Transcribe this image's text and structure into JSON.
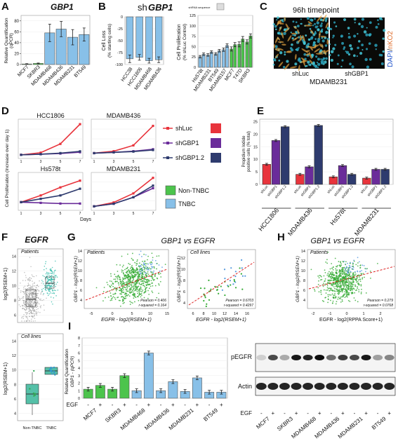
{
  "panels": {
    "A": "A",
    "B": "B",
    "C": "C",
    "D": "D",
    "E": "E",
    "F": "F",
    "G": "G",
    "H": "H",
    "I": "I"
  },
  "colors": {
    "tnbc": "#88c0e8",
    "non_tnbc": "#4cc44c",
    "shluc": "#e8343c",
    "shgbp1": "#6a2c9a",
    "shgbp12": "#2e3b6e",
    "egfr_fit": "#dd2222",
    "green_pts": "#33aa33",
    "blue_pts": "#5599dd"
  },
  "panel_a": {
    "title": "GBP1",
    "ylabel": "Relative Quantification",
    "ylabel2": "(qPCR)"
  },
  "panel_b": {
    "title_prefix": "sh",
    "title_gene": "GBP1",
    "inset_label": "shRNA sequence",
    "left_ylabel1": "Cell Loss",
    "left_ylabel2": "(% starting cells)",
    "right_ylabel1": "Cell Proliferation",
    "right_ylabel2": "(% shLuc Control)"
  },
  "panel_c": {
    "title": "96h timepoint",
    "label_left": "shLuc",
    "label_right": "shGBP1",
    "cell_line": "MDAMB231",
    "stain_dapi": "DAPI",
    "stain_sep": "/",
    "stain_nuc": "nKO2"
  },
  "panel_d": {
    "ylabel": "Cell Proliferation (Increase over day 1)",
    "xlabel": "Days",
    "legend": [
      "shLuc",
      "shGBP1",
      "shGBP1.2"
    ]
  },
  "legend_type": {
    "non_tnbc": "Non-TNBC",
    "tnbc": "TNBC"
  },
  "panel_e": {
    "ylabel1": "Propidium Iodide",
    "ylabel2": "positive cells (% total)"
  },
  "panel_f": {
    "title": "EGFR",
    "top_label": "Patients",
    "bottom_label": "Cell lines",
    "ylabel": "log2(RSEM+1)",
    "xlabels": [
      "Non-TNBC",
      "TNBC"
    ]
  },
  "panel_g": {
    "title": "GBP1 vs EGFR",
    "left_label": "Patients",
    "right_label": "Cell lines",
    "ylabel": "GBP1 - log2(RSEM+1)",
    "xlabel": "EGFR - log2(RSEM+1)",
    "left_stats": [
      "Pearson = 0.406",
      "r-squared = 0.164"
    ],
    "right_stats": [
      "Pearson = 0.6703",
      "r-squared = 0.4297"
    ]
  },
  "panel_h": {
    "title": "GBP1 vs EGFR",
    "label": "Patients",
    "ylabel": "GBP1 - log2(RSEM+1)",
    "xlabel": "EGFR - log2(RPPA Score+1)",
    "stats": [
      "Pearson = 0.279",
      "r-squared = 0.0768"
    ]
  },
  "panel_i": {
    "ylabel1": "Relative Quantification",
    "ylabel2": "GBP1 - (qPCR)",
    "egf_label": "EGF",
    "wb_labels": [
      "pEGFR",
      "Actin"
    ]
  },
  "chart_data": [
    {
      "id": "A",
      "type": "bar",
      "categories": [
        "MCF7",
        "SKBR3",
        "MDAMB468",
        "MDAMB436",
        "MDAMB231",
        "BT549"
      ],
      "values": [
        1,
        2,
        58,
        65,
        50,
        55
      ],
      "errors": [
        0.5,
        0.7,
        16,
        14,
        14,
        12
      ],
      "ylim": [
        0,
        90
      ],
      "yticks": [
        0,
        20,
        40,
        60,
        80
      ],
      "groups": [
        "non",
        "non",
        "tnbc",
        "tnbc",
        "tnbc",
        "tnbc"
      ]
    },
    {
      "id": "B-left",
      "type": "bar",
      "categories": [
        "HCC38",
        "HCC1806",
        "MDAMB468",
        "MDAMB436"
      ],
      "values": [
        -88,
        -85,
        -92,
        -90
      ],
      "errors": [
        8,
        6,
        5,
        6
      ],
      "ylim": [
        -100,
        0
      ],
      "yticks": [
        -100,
        -75,
        -50,
        -25,
        0
      ]
    },
    {
      "id": "B-right",
      "type": "bar",
      "categories": [
        "Hs578t",
        "MDAMB231",
        "BT549",
        "MDAMB157",
        "MCF7",
        "T47D",
        "SKBR3"
      ],
      "values": [
        30,
        35,
        38,
        50,
        52,
        65,
        72
      ],
      "errors": [
        3,
        3,
        3,
        4,
        5,
        6,
        5
      ],
      "ylim": [
        0,
        125
      ],
      "yticks": [
        0,
        25,
        50,
        75,
        100,
        125
      ],
      "groups": [
        "tnbc",
        "tnbc",
        "tnbc",
        "tnbc",
        "non",
        "non",
        "non"
      ],
      "per_group_bars": 4
    },
    {
      "id": "D",
      "type": "line",
      "x": [
        1,
        3,
        5,
        7
      ],
      "subplots": [
        {
          "name": "HCC1806",
          "series": [
            [
              1,
              2,
              6,
              15
            ],
            [
              1,
              1.3,
              1.6,
              2.2
            ],
            [
              1,
              1.3,
              1.8,
              2.6
            ]
          ],
          "ylim": [
            0,
            16
          ]
        },
        {
          "name": "MDAMB436",
          "series": [
            [
              1,
              1.5,
              3,
              8
            ],
            [
              1,
              1.2,
              1.5,
              2.0
            ],
            [
              1,
              1.2,
              1.4,
              1.8
            ]
          ],
          "ylim": [
            0,
            9
          ]
        },
        {
          "name": "Hs578t",
          "series": [
            [
              1,
              2.0,
              3.2,
              4.2
            ],
            [
              1,
              0.9,
              0.8,
              0.8
            ],
            [
              1,
              1.5,
              2.0,
              3.0
            ]
          ],
          "ylim": [
            0,
            5
          ]
        },
        {
          "name": "MDAMB231",
          "series": [
            [
              1,
              2.5,
              6,
              12
            ],
            [
              1,
              2,
              4.5,
              8
            ],
            [
              1,
              2,
              4.5,
              9
            ]
          ],
          "ylim": [
            0,
            13
          ]
        }
      ]
    },
    {
      "id": "E",
      "type": "bar",
      "groups": [
        "HCC1806",
        "MDAMB436",
        "Hs578t",
        "MDAMB231"
      ],
      "series": [
        {
          "name": "shLuc",
          "values": [
            8,
            4,
            3,
            2.5
          ]
        },
        {
          "name": "shGBP1",
          "values": [
            17.5,
            7,
            7.5,
            6
          ]
        },
        {
          "name": "shGBP1.2",
          "values": [
            23,
            23.5,
            4,
            6
          ]
        }
      ],
      "ylim": [
        0,
        26
      ],
      "yticks": [
        0,
        5,
        10,
        15,
        20,
        25
      ]
    },
    {
      "id": "I",
      "type": "bar",
      "categories": [
        "MCF7 -",
        "MCF7 +",
        "SKBR3 -",
        "SKBR3 +",
        "MDAMB468 -",
        "MDAMB468 +",
        "MDAMB436 -",
        "MDAMB436 +",
        "MDAMB231 -",
        "MDAMB231 +",
        "BT549 -",
        "BT549 +"
      ],
      "values": [
        1.2,
        1.7,
        1.2,
        3.0,
        1.0,
        6.0,
        1.0,
        2.2,
        0.9,
        2.7,
        0.8,
        0.8
      ],
      "ylim": [
        0,
        8
      ],
      "yticks": [
        0,
        1,
        2,
        3,
        4,
        5,
        6,
        7,
        8
      ]
    }
  ],
  "axes": {
    "a_x": [
      "MCF7",
      "SKBR3",
      "MDAMB468",
      "MDAMB436",
      "MDAMB231",
      "BT549"
    ],
    "b_left_x": [
      "HCC38",
      "HCC1806",
      "MDAMB468",
      "MDAMB436"
    ],
    "b_right_x": [
      "Hs578t",
      "MDAMB231",
      "BT549",
      "MDAMB157",
      "MCF7",
      "T47D",
      "SKBR3"
    ],
    "e_groups": [
      "HCC1806",
      "MDAMB436",
      "Hs578t",
      "MDAMB231"
    ],
    "e_subs": [
      "shLuc",
      "shGBP1",
      "shGBP1.2"
    ],
    "i_x": [
      "MCF7",
      "SKBR3",
      "MDAMB468",
      "MDAMB436",
      "MDAMB231",
      "BT549"
    ],
    "wb_x": [
      "MCF7",
      "SKBR3",
      "MDAMB468",
      "MDAMB436",
      "MDAMB231",
      "BT549"
    ],
    "egf_signs": [
      "-",
      "+"
    ]
  }
}
